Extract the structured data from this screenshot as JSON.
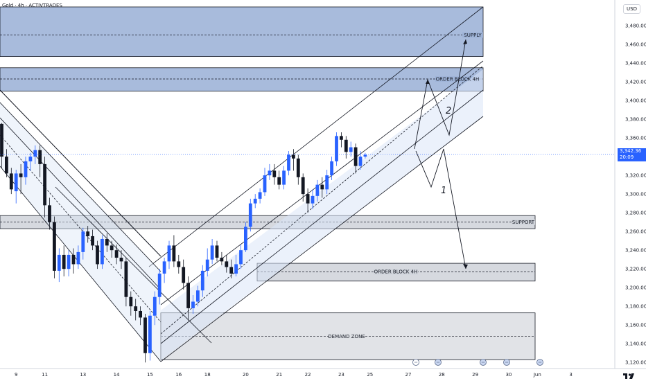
{
  "header": {
    "symbol": "Gold",
    "interval": "4h",
    "broker": "ACTIVTRADES",
    "title": "Gold · 4h · ACTIVTRADES"
  },
  "unit_label": "USD",
  "last_price": {
    "value": "3,342.36",
    "countdown": "20:09"
  },
  "colors": {
    "up_candle": "#2962ff",
    "down_candle": "#131722",
    "zone_fill": "#9fb4d8",
    "zone_fill_light": "#dfe2e8",
    "channel_fill": "#dbe6f7",
    "line": "#131722",
    "price_tag": "#2962ff"
  },
  "chart_data": {
    "type": "candlestick",
    "title": "Gold · 4h · ACTIVTRADES",
    "ylim": [
      3115,
      3500
    ],
    "yticks": [
      3120,
      3140,
      3160,
      3180,
      3200,
      3220,
      3240,
      3260,
      3280,
      3300,
      3320,
      3340,
      3360,
      3380,
      3400,
      3420,
      3440,
      3460,
      3480
    ],
    "ytick_labels": [
      "3,120.00",
      "3,140.00",
      "3,160.00",
      "3,180.00",
      "3,200.00",
      "3,220.00",
      "3,240.00",
      "3,260.00",
      "3,280.00",
      "3,300.00",
      "3,320.00",
      "3,340.00",
      "3,360.00",
      "3,380.00",
      "3,400.00",
      "3,420.00",
      "3,440.00",
      "3,460.00",
      "3,480.00"
    ],
    "xticks": [
      {
        "label": "9",
        "i": 3
      },
      {
        "label": "11",
        "i": 9
      },
      {
        "label": "13",
        "i": 17
      },
      {
        "label": "14",
        "i": 24
      },
      {
        "label": "15",
        "i": 31
      },
      {
        "label": "16",
        "i": 37
      },
      {
        "label": "18",
        "i": 43
      },
      {
        "label": "20",
        "i": 51
      },
      {
        "label": "21",
        "i": 58
      },
      {
        "label": "22",
        "i": 64
      },
      {
        "label": "23",
        "i": 71
      },
      {
        "label": "25",
        "i": 77
      },
      {
        "label": "27",
        "i": 85
      },
      {
        "label": "28",
        "i": 92
      },
      {
        "label": "29",
        "i": 99
      },
      {
        "label": "30",
        "i": 106
      },
      {
        "label": "Jun",
        "i": 112
      },
      {
        "label": "3",
        "i": 119
      }
    ],
    "candles": [
      [
        3375,
        3340,
        3376,
        3328
      ],
      [
        3340,
        3322,
        3348,
        3318
      ],
      [
        3322,
        3305,
        3328,
        3300
      ],
      [
        3303,
        3322,
        3326,
        3290
      ],
      [
        3322,
        3318,
        3332,
        3300
      ],
      [
        3318,
        3335,
        3340,
        3310
      ],
      [
        3335,
        3340,
        3344,
        3325
      ],
      [
        3340,
        3347,
        3352,
        3332
      ],
      [
        3347,
        3332,
        3352,
        3318
      ],
      [
        3332,
        3288,
        3340,
        3275
      ],
      [
        3288,
        3270,
        3296,
        3262
      ],
      [
        3270,
        3218,
        3276,
        3210
      ],
      [
        3218,
        3235,
        3242,
        3206
      ],
      [
        3235,
        3220,
        3245,
        3212
      ],
      [
        3220,
        3235,
        3240,
        3212
      ],
      [
        3235,
        3225,
        3242,
        3215
      ],
      [
        3225,
        3238,
        3245,
        3220
      ],
      [
        3238,
        3260,
        3264,
        3230
      ],
      [
        3260,
        3255,
        3266,
        3248
      ],
      [
        3255,
        3245,
        3262,
        3240
      ],
      [
        3245,
        3225,
        3250,
        3220
      ],
      [
        3225,
        3252,
        3256,
        3220
      ],
      [
        3252,
        3245,
        3258,
        3238
      ],
      [
        3245,
        3240,
        3250,
        3232
      ],
      [
        3240,
        3232,
        3246,
        3225
      ],
      [
        3232,
        3228,
        3240,
        3220
      ],
      [
        3228,
        3190,
        3232,
        3180
      ],
      [
        3190,
        3180,
        3196,
        3170
      ],
      [
        3180,
        3175,
        3188,
        3165
      ],
      [
        3175,
        3168,
        3180,
        3160
      ],
      [
        3168,
        3130,
        3172,
        3120
      ],
      [
        3130,
        3170,
        3175,
        3122
      ],
      [
        3170,
        3190,
        3196,
        3160
      ],
      [
        3190,
        3215,
        3220,
        3182
      ],
      [
        3215,
        3228,
        3232,
        3205
      ],
      [
        3228,
        3245,
        3250,
        3220
      ],
      [
        3245,
        3228,
        3256,
        3222
      ],
      [
        3228,
        3222,
        3235,
        3215
      ],
      [
        3222,
        3205,
        3230,
        3198
      ],
      [
        3205,
        3178,
        3212,
        3165
      ],
      [
        3178,
        3185,
        3192,
        3172
      ],
      [
        3185,
        3197,
        3202,
        3180
      ],
      [
        3197,
        3218,
        3224,
        3190
      ],
      [
        3218,
        3230,
        3242,
        3212
      ],
      [
        3230,
        3245,
        3252,
        3225
      ],
      [
        3245,
        3232,
        3250,
        3228
      ],
      [
        3232,
        3228,
        3238,
        3224
      ],
      [
        3228,
        3222,
        3235,
        3216
      ],
      [
        3222,
        3215,
        3230,
        3210
      ],
      [
        3215,
        3225,
        3235,
        3212
      ],
      [
        3225,
        3240,
        3246,
        3220
      ],
      [
        3240,
        3265,
        3270,
        3238
      ],
      [
        3265,
        3290,
        3295,
        3260
      ],
      [
        3290,
        3295,
        3300,
        3285
      ],
      [
        3295,
        3302,
        3306,
        3290
      ],
      [
        3302,
        3320,
        3328,
        3298
      ],
      [
        3320,
        3325,
        3332,
        3315
      ],
      [
        3325,
        3318,
        3332,
        3310
      ],
      [
        3318,
        3310,
        3325,
        3305
      ],
      [
        3310,
        3325,
        3330,
        3305
      ],
      [
        3325,
        3342,
        3346,
        3320
      ],
      [
        3342,
        3338,
        3348,
        3325
      ],
      [
        3338,
        3318,
        3342,
        3310
      ],
      [
        3318,
        3300,
        3322,
        3292
      ],
      [
        3300,
        3290,
        3306,
        3280
      ],
      [
        3290,
        3298,
        3305,
        3284
      ],
      [
        3298,
        3310,
        3315,
        3292
      ],
      [
        3310,
        3305,
        3318,
        3296
      ],
      [
        3305,
        3320,
        3326,
        3300
      ],
      [
        3320,
        3335,
        3340,
        3315
      ],
      [
        3335,
        3362,
        3366,
        3330
      ],
      [
        3362,
        3358,
        3366,
        3350
      ],
      [
        3358,
        3345,
        3362,
        3338
      ],
      [
        3345,
        3350,
        3356,
        3340
      ],
      [
        3350,
        3330,
        3354,
        3322
      ],
      [
        3330,
        3340,
        3346,
        3326
      ],
      [
        3340,
        3342,
        3344,
        3338
      ]
    ],
    "zones": [
      {
        "label": "SUPPLY",
        "top": 3500,
        "bottom": 3447,
        "mid": 3470
      },
      {
        "label": "ORDER BLOCK 4H",
        "top": 3435,
        "bottom": 3410,
        "mid": 3423
      },
      {
        "label": "SUPPORT",
        "top": 3277,
        "bottom": 3263,
        "mid": 3270
      },
      {
        "label": "ORDER BLOCK 4H",
        "top": 3226,
        "bottom": 3207,
        "mid": 3217
      },
      {
        "label": "DEMAND ZONE",
        "top": 3173,
        "bottom": 3123,
        "mid": 3148
      }
    ],
    "annotations": [
      "1",
      "2"
    ],
    "last_price": 3342.36,
    "grid": false
  }
}
